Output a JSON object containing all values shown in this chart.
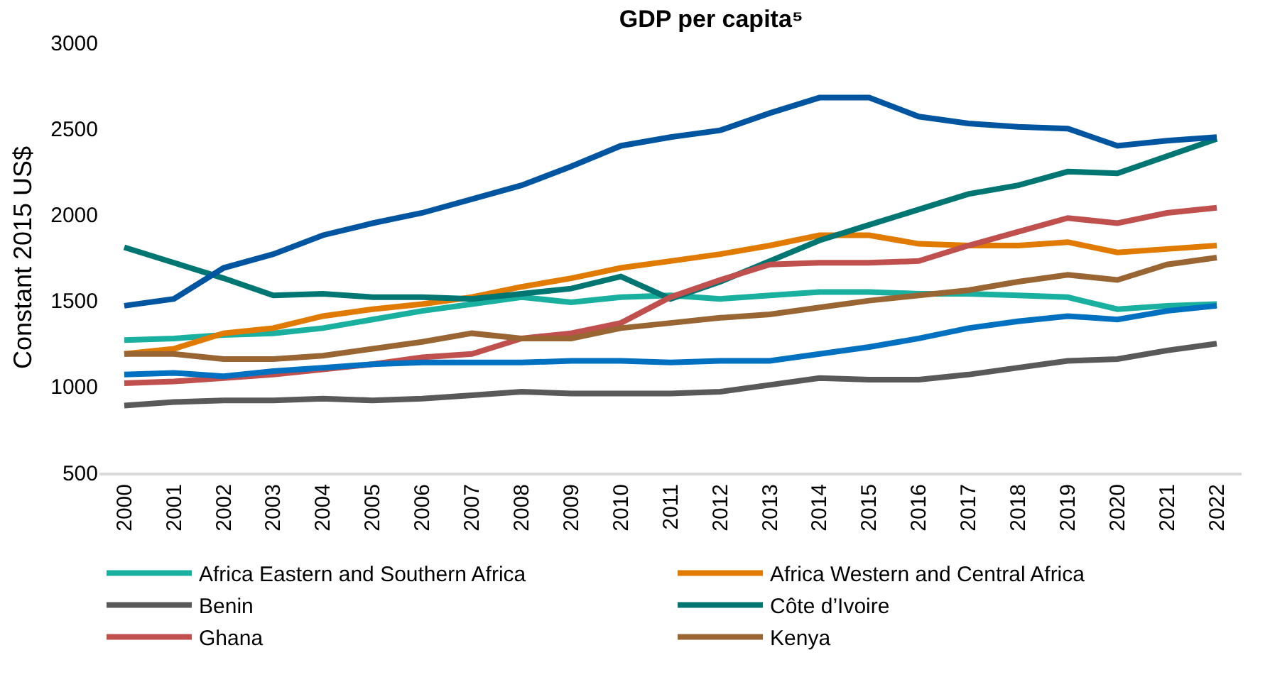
{
  "chart_data": {
    "type": "line",
    "title": "GDP per capita⁵",
    "ylabel": "Constant 2015 US$",
    "categories": [
      "2000",
      "2001",
      "2002",
      "2003",
      "2004",
      "2005",
      "2006",
      "2007",
      "2008",
      "2009",
      "2010",
      "2011",
      "2012",
      "2013",
      "2014",
      "2015",
      "2016",
      "2017",
      "2018",
      "2019",
      "2020",
      "2021",
      "2022"
    ],
    "ylim": [
      500,
      3000
    ],
    "yticks": [
      500,
      1000,
      1500,
      2000,
      2500,
      3000
    ],
    "legend": "bottom",
    "marker": "none",
    "line_style": "solid",
    "series": [
      {
        "name": "Africa Eastern and Southern Africa",
        "color": "#1ab0a0",
        "values": [
          1270,
          1280,
          1300,
          1310,
          1340,
          1390,
          1440,
          1480,
          1520,
          1490,
          1520,
          1530,
          1510,
          1530,
          1550,
          1550,
          1540,
          1540,
          1530,
          1520,
          1450,
          1470,
          1480
        ]
      },
      {
        "name": "Africa Western and Central Africa",
        "color": "#e07b00",
        "values": [
          1190,
          1220,
          1310,
          1340,
          1410,
          1450,
          1480,
          1520,
          1580,
          1630,
          1690,
          1730,
          1770,
          1820,
          1880,
          1880,
          1830,
          1820,
          1820,
          1840,
          1780,
          1800,
          1820
        ]
      },
      {
        "name": "Benin",
        "color": "#595959",
        "values": [
          890,
          910,
          920,
          920,
          930,
          920,
          930,
          950,
          970,
          960,
          960,
          960,
          970,
          1010,
          1050,
          1040,
          1040,
          1070,
          1110,
          1150,
          1160,
          1210,
          1250
        ]
      },
      {
        "name": "Côte d’Ivoire",
        "color": "#007672",
        "values": [
          1810,
          1720,
          1630,
          1530,
          1540,
          1520,
          1520,
          1510,
          1540,
          1570,
          1640,
          1510,
          1610,
          1730,
          1850,
          1940,
          2030,
          2120,
          2170,
          2250,
          2240,
          2340,
          2440
        ]
      },
      {
        "name": "Ghana",
        "color": "#c0504d",
        "values": [
          1020,
          1030,
          1050,
          1070,
          1100,
          1130,
          1170,
          1190,
          1280,
          1310,
          1370,
          1520,
          1620,
          1710,
          1720,
          1720,
          1730,
          1820,
          1900,
          1980,
          1950,
          2010,
          2040
        ]
      },
      {
        "name": "Kenya",
        "color": "#996633",
        "values": [
          1190,
          1190,
          1160,
          1160,
          1180,
          1220,
          1260,
          1310,
          1280,
          1280,
          1340,
          1370,
          1400,
          1420,
          1460,
          1500,
          1530,
          1560,
          1610,
          1650,
          1620,
          1710,
          1750
        ]
      },
      {
        "color": "#0055a0",
        "values": [
          1470,
          1510,
          1690,
          1770,
          1880,
          1950,
          2010,
          2090,
          2170,
          2280,
          2400,
          2450,
          2490,
          2590,
          2680,
          2680,
          2570,
          2530,
          2510,
          2500,
          2400,
          2430,
          2450
        ]
      },
      {
        "color": "#0070c0",
        "values": [
          1070,
          1080,
          1060,
          1090,
          1110,
          1130,
          1140,
          1140,
          1140,
          1150,
          1150,
          1140,
          1150,
          1150,
          1190,
          1230,
          1280,
          1340,
          1380,
          1410,
          1390,
          1440,
          1470
        ]
      }
    ]
  }
}
